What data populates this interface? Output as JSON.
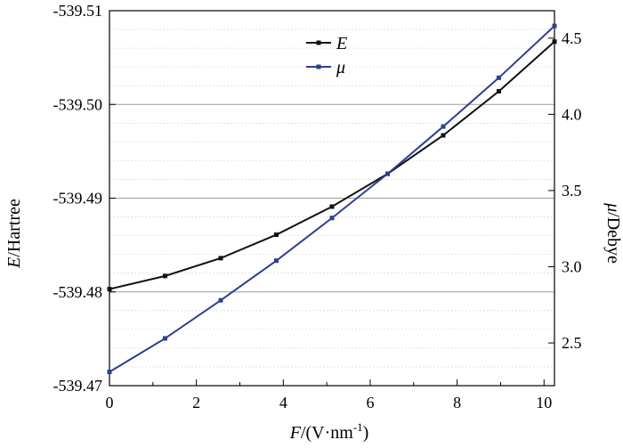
{
  "chart_data": {
    "type": "line",
    "x": [
      0,
      1.28,
      2.56,
      3.84,
      5.12,
      6.4,
      7.68,
      8.96,
      10.24
    ],
    "series": [
      {
        "name": "E",
        "axis": "left",
        "color": "#111111",
        "values": [
          -539.4803,
          -539.4817,
          -539.4836,
          -539.4861,
          -539.4891,
          -539.4926,
          -539.4967,
          -539.5014,
          -539.5067
        ]
      },
      {
        "name": "μ",
        "axis": "right",
        "color": "#2e3f8f",
        "values": [
          2.31,
          2.53,
          2.78,
          3.04,
          3.32,
          3.61,
          3.92,
          4.24,
          4.58
        ]
      }
    ],
    "x_axis": {
      "label_prefix": "F",
      "label_main": "/(V·nm",
      "label_sup": "-1",
      "label_suffix": ")",
      "ticks": [
        0,
        2,
        4,
        6,
        8,
        10
      ],
      "tick_labels": [
        "0",
        "2",
        "4",
        "6",
        "8",
        "10"
      ],
      "range": [
        0,
        10.24
      ]
    },
    "y_left": {
      "label_prefix": "E",
      "label_main": "/Hartree",
      "reversed": true,
      "range": [
        -539.47,
        -539.51
      ],
      "ticks": [
        -539.47,
        -539.48,
        -539.49,
        -539.5,
        -539.51
      ],
      "tick_labels": [
        "-539.47",
        "-539.48",
        "-539.49",
        "-539.50",
        "-539.51"
      ]
    },
    "y_right": {
      "label_prefix": "μ",
      "label_main": "/Debye",
      "range": [
        2.22,
        4.68
      ],
      "ticks": [
        2.5,
        3.0,
        3.5,
        4.0,
        4.5
      ],
      "tick_labels": [
        "2.5",
        "3.0",
        "3.5",
        "4.0",
        "4.5"
      ]
    },
    "grid": true,
    "legend": {
      "position": "top-center",
      "entries": [
        "E",
        "μ"
      ]
    }
  }
}
